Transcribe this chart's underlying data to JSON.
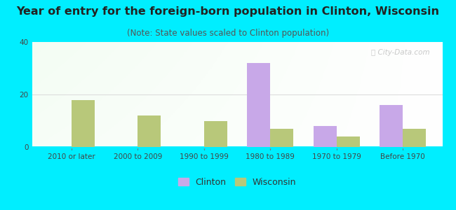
{
  "title": "Year of entry for the foreign-born population in Clinton, Wisconsin",
  "subtitle": "(Note: State values scaled to Clinton population)",
  "categories": [
    "2010 or later",
    "2000 to 2009",
    "1990 to 1999",
    "1980 to 1989",
    "1970 to 1979",
    "Before 1970"
  ],
  "clinton_values": [
    0,
    0,
    0,
    32,
    8,
    16
  ],
  "wisconsin_values": [
    18,
    12,
    10,
    7,
    4,
    7
  ],
  "clinton_color": "#c8a8e8",
  "wisconsin_color": "#b8c87a",
  "background_outer": "#00eeff",
  "ylim": [
    0,
    40
  ],
  "yticks": [
    0,
    20,
    40
  ],
  "bar_width": 0.35,
  "title_fontsize": 11.5,
  "subtitle_fontsize": 8.5,
  "tick_fontsize": 7.5,
  "legend_fontsize": 9
}
